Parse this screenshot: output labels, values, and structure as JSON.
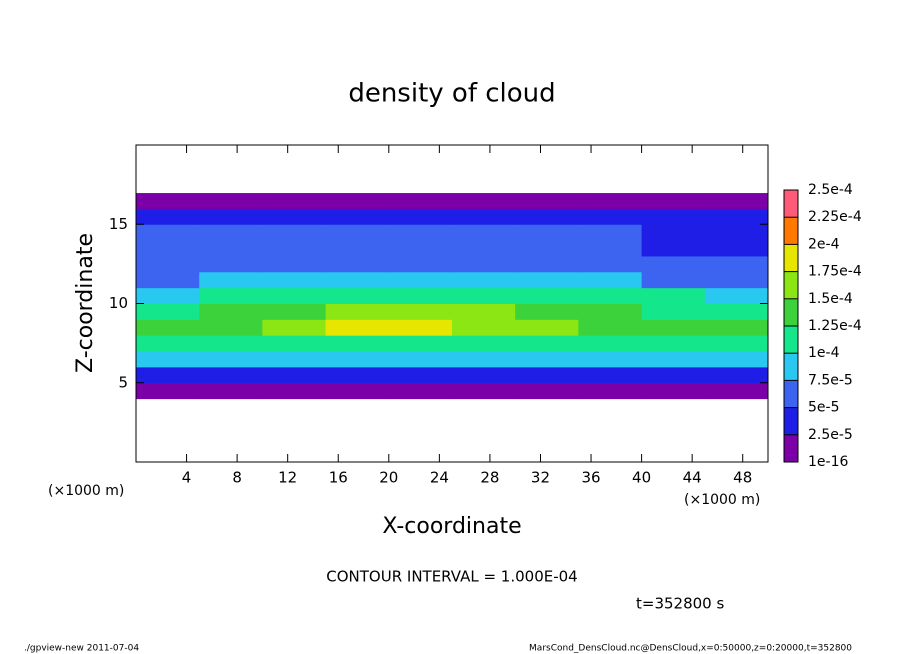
{
  "chart_data": {
    "type": "contour",
    "title": "density of cloud",
    "x_label": "X-coordinate",
    "y_label": "Z-coordinate",
    "x_unit_label": "(×1000 m)",
    "contour_interval_text": "CONTOUR INTERVAL = 1.000E-04",
    "time_text": "t=352800 s",
    "footer_left": "./gpview-new  2011-07-04",
    "footer_right": "MarsCond_DensCloud.nc@DensCloud,x=0:50000,z=0:20000,t=352800",
    "xlim": [
      0,
      50
    ],
    "ylim": [
      0,
      20
    ],
    "xticks": [
      4,
      8,
      12,
      16,
      20,
      24,
      28,
      32,
      36,
      40,
      44,
      48
    ],
    "yticks": [
      5,
      10,
      15
    ],
    "x": [
      0,
      5,
      10,
      15,
      20,
      25,
      30,
      35,
      40,
      45,
      50
    ],
    "z": [
      0,
      1,
      2,
      3,
      4,
      5,
      6,
      7,
      8,
      9,
      10,
      11,
      12,
      13,
      14,
      15,
      16,
      17,
      18,
      19,
      20
    ],
    "values": [
      [
        0,
        0,
        0,
        0,
        0,
        0,
        0,
        0,
        0,
        0
      ],
      [
        0,
        0,
        0,
        0,
        0,
        0,
        0,
        0,
        0,
        0
      ],
      [
        0,
        0,
        0,
        0,
        0,
        0,
        0,
        0,
        0,
        0
      ],
      [
        0,
        0,
        0,
        0,
        0,
        0,
        0,
        0,
        0,
        0
      ],
      [
        1e-06,
        1e-06,
        1e-06,
        1e-06,
        1e-06,
        1e-06,
        1e-06,
        1e-06,
        1e-06,
        1e-06
      ],
      [
        3e-05,
        3e-05,
        3e-05,
        3e-05,
        3e-05,
        3e-05,
        3e-05,
        3e-05,
        3e-05,
        3e-05
      ],
      [
        8e-05,
        8e-05,
        8e-05,
        8e-05,
        8e-05,
        8e-05,
        8e-05,
        8e-05,
        8e-05,
        8e-05
      ],
      [
        0.00012,
        0.00012,
        0.00012,
        0.00012,
        0.00012,
        0.00012,
        0.00012,
        0.00012,
        0.00012,
        0.00012
      ],
      [
        0.000135,
        0.00014,
        0.00015,
        0.00018,
        0.00018,
        0.00016,
        0.00016,
        0.00014,
        0.000135,
        0.00013
      ],
      [
        0.00012,
        0.00013,
        0.00014,
        0.00016,
        0.00016,
        0.00015,
        0.00014,
        0.00013,
        0.00012,
        0.00011
      ],
      [
        9e-05,
        0.000105,
        0.00011,
        0.00011,
        0.000115,
        0.00011,
        0.000105,
        0.000105,
        0.0001,
        9e-05
      ],
      [
        7e-05,
        8e-05,
        8.5e-05,
        8.5e-05,
        9e-05,
        8.5e-05,
        8e-05,
        7.5e-05,
        7e-05,
        7e-05
      ],
      [
        6e-05,
        6.5e-05,
        7e-05,
        7e-05,
        7e-05,
        6.5e-05,
        6.5e-05,
        6e-05,
        5.5e-05,
        5e-05
      ],
      [
        5.5e-05,
        6e-05,
        6e-05,
        6e-05,
        6e-05,
        6e-05,
        6e-05,
        5.5e-05,
        4.5e-05,
        4.5e-05
      ],
      [
        5.5e-05,
        5.5e-05,
        5.5e-05,
        5.5e-05,
        5.5e-05,
        5.5e-05,
        5.5e-05,
        5e-05,
        4.5e-05,
        4.5e-05
      ],
      [
        4e-05,
        4e-05,
        4e-05,
        4e-05,
        4e-05,
        4e-05,
        4e-05,
        4e-05,
        4e-05,
        4e-05
      ],
      [
        1e-05,
        1e-05,
        1e-05,
        1e-05,
        1e-05,
        1e-05,
        1e-05,
        1e-05,
        1e-05,
        1e-05
      ],
      [
        0,
        0,
        0,
        0,
        0,
        0,
        0,
        0,
        0,
        0
      ],
      [
        0,
        0,
        0,
        0,
        0,
        0,
        0,
        0,
        0,
        0
      ],
      [
        0,
        0,
        0,
        0,
        0,
        0,
        0,
        0,
        0,
        0
      ]
    ],
    "levels": [
      {
        "value": 1e-16,
        "label": "1e-16"
      },
      {
        "value": 2.5e-05,
        "label": "2.5e-5"
      },
      {
        "value": 5e-05,
        "label": "5e-5"
      },
      {
        "value": 7.5e-05,
        "label": "7.5e-5"
      },
      {
        "value": 0.0001,
        "label": "1e-4"
      },
      {
        "value": 0.000125,
        "label": "1.25e-4"
      },
      {
        "value": 0.00015,
        "label": "1.5e-4"
      },
      {
        "value": 0.000175,
        "label": "1.75e-4"
      },
      {
        "value": 0.0002,
        "label": "2e-4"
      },
      {
        "value": 0.000225,
        "label": "2.25e-4"
      },
      {
        "value": 0.00025,
        "label": "2.5e-4"
      }
    ],
    "colors": [
      "#7b00a8",
      "#1e1ee6",
      "#3c64f0",
      "#28c8f0",
      "#14e68c",
      "#3cd23c",
      "#8ce614",
      "#e6e600",
      "#ff7800",
      "#ff5a78"
    ]
  }
}
